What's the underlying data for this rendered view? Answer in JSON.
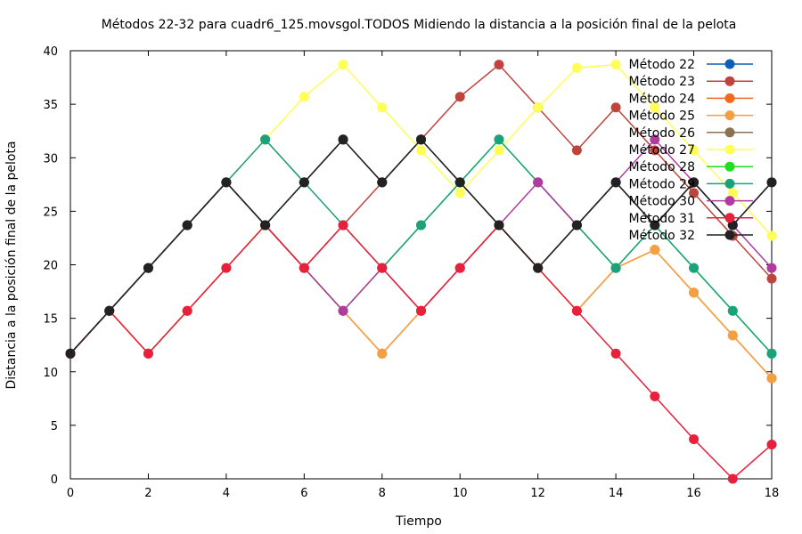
{
  "chart_data": {
    "type": "line",
    "title": "Métodos 22-32 para cuadr6_125.movsgol.TODOS Midiendo la distancia a la posición final de la pelota",
    "xlabel": "Tiempo",
    "ylabel": "Distancia a la posición final de la pelota",
    "xlim": [
      0,
      18
    ],
    "ylim": [
      0,
      40
    ],
    "xticks": [
      0,
      2,
      4,
      6,
      8,
      10,
      12,
      14,
      16,
      18
    ],
    "yticks": [
      0,
      5,
      10,
      15,
      20,
      25,
      30,
      35,
      40
    ],
    "grid": false,
    "legend_position": "top-right",
    "x": [
      0,
      1,
      2,
      3,
      4,
      5,
      6,
      7,
      8,
      9,
      10,
      11,
      12,
      13,
      14,
      15,
      16,
      17,
      18
    ],
    "series": [
      {
        "name": "Método 22",
        "color": "#0b5fb5",
        "values": [
          11.7,
          15.7,
          19.7,
          23.7,
          27.7,
          23.7,
          27.7,
          31.7,
          27.7,
          31.7,
          27.7,
          23.7,
          19.7,
          23.7,
          27.7,
          23.7,
          27.7,
          23.7,
          27.7
        ]
      },
      {
        "name": "Método 23",
        "color": "#c0443e",
        "values": [
          11.7,
          15.7,
          19.7,
          23.7,
          27.7,
          23.7,
          19.7,
          23.7,
          27.7,
          31.7,
          35.7,
          38.7,
          34.7,
          30.7,
          34.7,
          30.7,
          26.7,
          22.7,
          18.7
        ]
      },
      {
        "name": "Método 24",
        "color": "#f06a22",
        "values": [
          11.7,
          15.7,
          11.7,
          15.7,
          19.7,
          23.7,
          19.7,
          15.7,
          11.7,
          15.7,
          19.7,
          23.7,
          19.7,
          15.7,
          19.7,
          21.4,
          17.4,
          13.4,
          9.4
        ]
      },
      {
        "name": "Método 25",
        "color": "#f5a040",
        "values": [
          11.7,
          15.7,
          11.7,
          15.7,
          19.7,
          23.7,
          19.7,
          15.7,
          11.7,
          15.7,
          19.7,
          23.7,
          19.7,
          15.7,
          19.7,
          21.4,
          17.4,
          13.4,
          9.4
        ]
      },
      {
        "name": "Método 26",
        "color": "#8b7352",
        "values": [
          11.7,
          15.7,
          19.7,
          23.7,
          27.7,
          31.7,
          27.7,
          31.7,
          27.7,
          31.7,
          27.7,
          23.7,
          19.7,
          23.7,
          27.7,
          23.7,
          27.7,
          23.7,
          27.7
        ]
      },
      {
        "name": "Método 27",
        "color": "#ffff55",
        "values": [
          11.7,
          15.7,
          19.7,
          23.7,
          27.7,
          31.7,
          35.7,
          38.7,
          34.7,
          30.7,
          26.7,
          30.7,
          34.7,
          38.4,
          38.7,
          34.7,
          30.7,
          26.7,
          22.7
        ]
      },
      {
        "name": "Método 28",
        "color": "#22dd22",
        "values": [
          11.7,
          15.7,
          19.7,
          23.7,
          27.7,
          23.7,
          19.7,
          15.7,
          19.7,
          23.7,
          27.7,
          31.7,
          27.7,
          23.7,
          19.7,
          23.7,
          19.7,
          15.7,
          11.7
        ]
      },
      {
        "name": "Método 29",
        "color": "#1aa37a",
        "values": [
          11.7,
          15.7,
          19.7,
          23.7,
          27.7,
          31.7,
          27.7,
          23.7,
          19.7,
          23.7,
          27.7,
          31.7,
          27.7,
          23.7,
          19.7,
          23.7,
          19.7,
          15.7,
          11.7
        ]
      },
      {
        "name": "Método 30",
        "color": "#b03aa0",
        "values": [
          11.7,
          15.7,
          19.7,
          23.7,
          27.7,
          23.7,
          19.7,
          15.7,
          19.7,
          15.7,
          19.7,
          23.7,
          27.7,
          23.7,
          27.7,
          31.7,
          27.7,
          23.7,
          19.7
        ]
      },
      {
        "name": "Método 31",
        "color": "#e8203c",
        "values": [
          11.7,
          15.7,
          11.7,
          15.7,
          19.7,
          23.7,
          19.7,
          23.7,
          19.7,
          15.7,
          19.7,
          23.7,
          19.7,
          15.7,
          11.7,
          7.7,
          3.7,
          0,
          3.2
        ]
      },
      {
        "name": "Método 32",
        "color": "#222222",
        "values": [
          11.7,
          15.7,
          19.7,
          23.7,
          27.7,
          23.7,
          27.7,
          31.7,
          27.7,
          31.7,
          27.7,
          23.7,
          19.7,
          23.7,
          27.7,
          23.7,
          27.7,
          23.7,
          27.7
        ]
      }
    ]
  }
}
